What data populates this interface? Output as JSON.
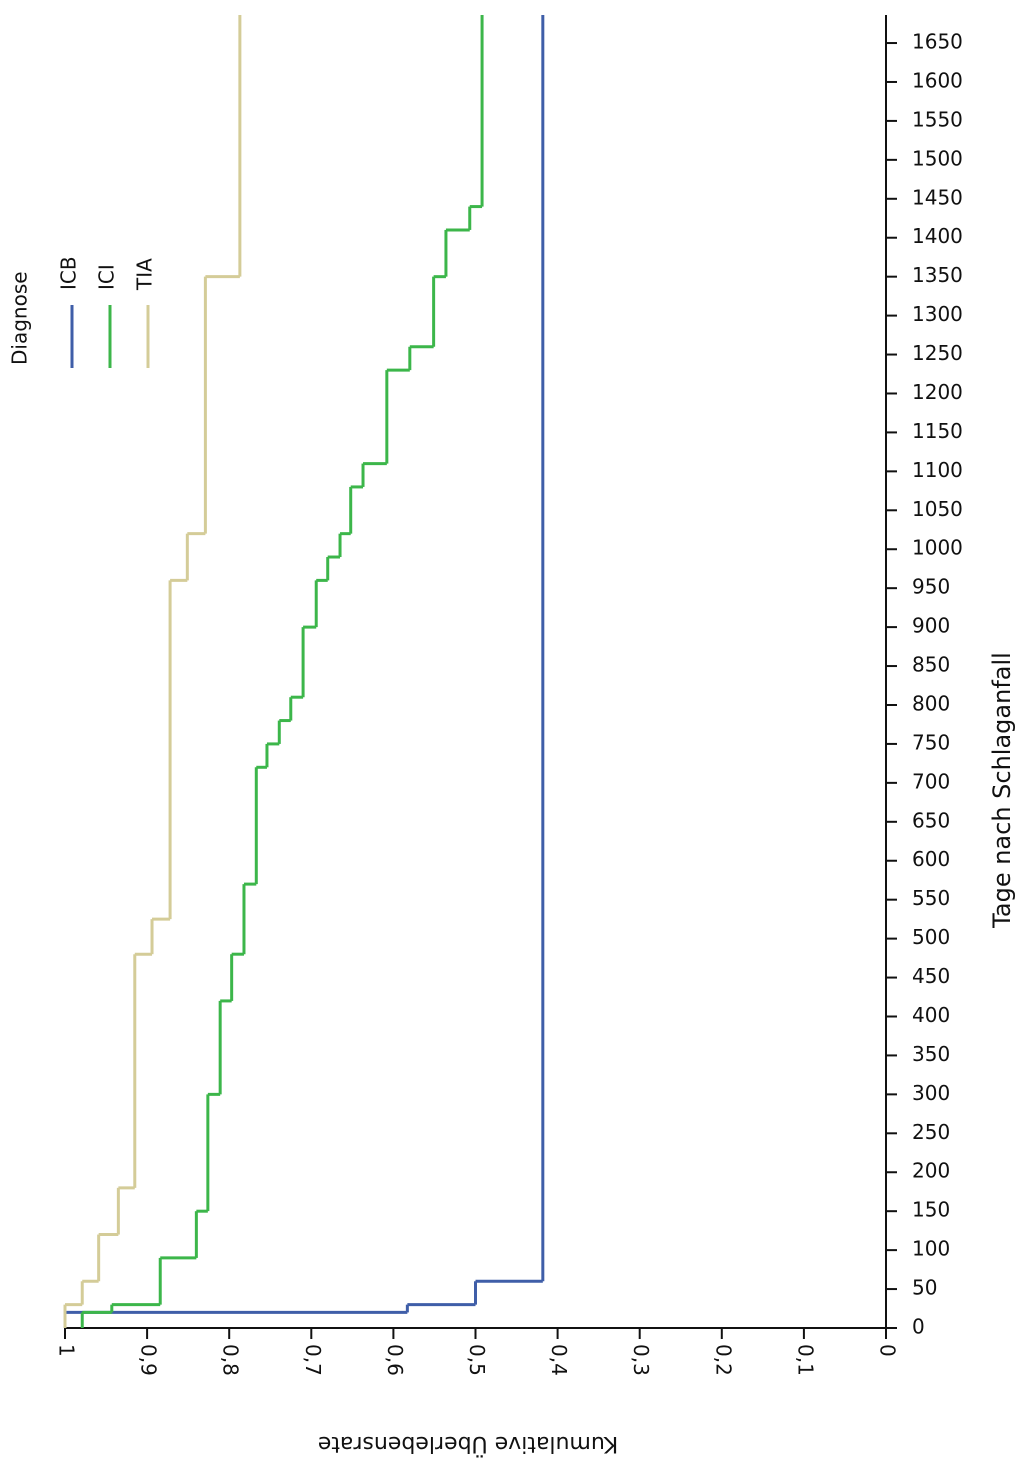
{
  "chart_data": {
    "type": "step",
    "xlabel": "Tage nach Schlaganfall",
    "ylabel": "Kumulative Überlebensrate",
    "legend_title": "Diagnose",
    "legend": "top-left",
    "xlim": [
      0,
      1686
    ],
    "xticks": [
      0,
      50,
      100,
      150,
      200,
      250,
      300,
      350,
      400,
      450,
      500,
      550,
      600,
      650,
      700,
      750,
      800,
      850,
      900,
      950,
      1000,
      1050,
      1100,
      1150,
      1200,
      1250,
      1300,
      1350,
      1400,
      1450,
      1500,
      1550,
      1600,
      1650
    ],
    "ylim": [
      0,
      1
    ],
    "yticks": [
      0,
      {
        "value": 0.1,
        "label": "0,1"
      },
      {
        "value": 0.2,
        "label": "0,2"
      },
      {
        "value": 0.3,
        "label": "0,3"
      },
      {
        "value": 0.4,
        "label": "0,4"
      },
      {
        "value": 0.5,
        "label": "0,5"
      },
      {
        "value": 0.6,
        "label": "0,6"
      },
      {
        "value": 0.7,
        "label": "0,7"
      },
      {
        "value": 0.8,
        "label": "0,8"
      },
      {
        "value": 0.9,
        "label": "0,9"
      },
      1
    ],
    "series": [
      {
        "name": "ICB",
        "color": "#3f5ea8",
        "x": [
          0,
          20,
          30,
          60
        ],
        "values": [
          1,
          0.583,
          0.5,
          0.418
        ]
      },
      {
        "name": "ICI",
        "color": "#3cb64a",
        "x": [
          0,
          20,
          30,
          90,
          150,
          300,
          420,
          480,
          570,
          720,
          750,
          780,
          810,
          900,
          960,
          990,
          1020,
          1080,
          1110,
          1230,
          1260,
          1350,
          1410,
          1440
        ],
        "values": [
          0.979,
          0.943,
          0.884,
          0.84,
          0.826,
          0.811,
          0.797,
          0.782,
          0.767,
          0.754,
          0.739,
          0.725,
          0.71,
          0.694,
          0.68,
          0.665,
          0.652,
          0.637,
          0.608,
          0.58,
          0.551,
          0.536,
          0.507,
          0.492
        ]
      },
      {
        "name": "TIA",
        "color": "#d4cc98",
        "x": [
          0,
          30,
          60,
          120,
          180,
          480,
          525,
          960,
          1020,
          1350
        ],
        "values": [
          1,
          0.979,
          0.959,
          0.935,
          0.915,
          0.894,
          0.872,
          0.851,
          0.829,
          0.787
        ]
      }
    ]
  }
}
